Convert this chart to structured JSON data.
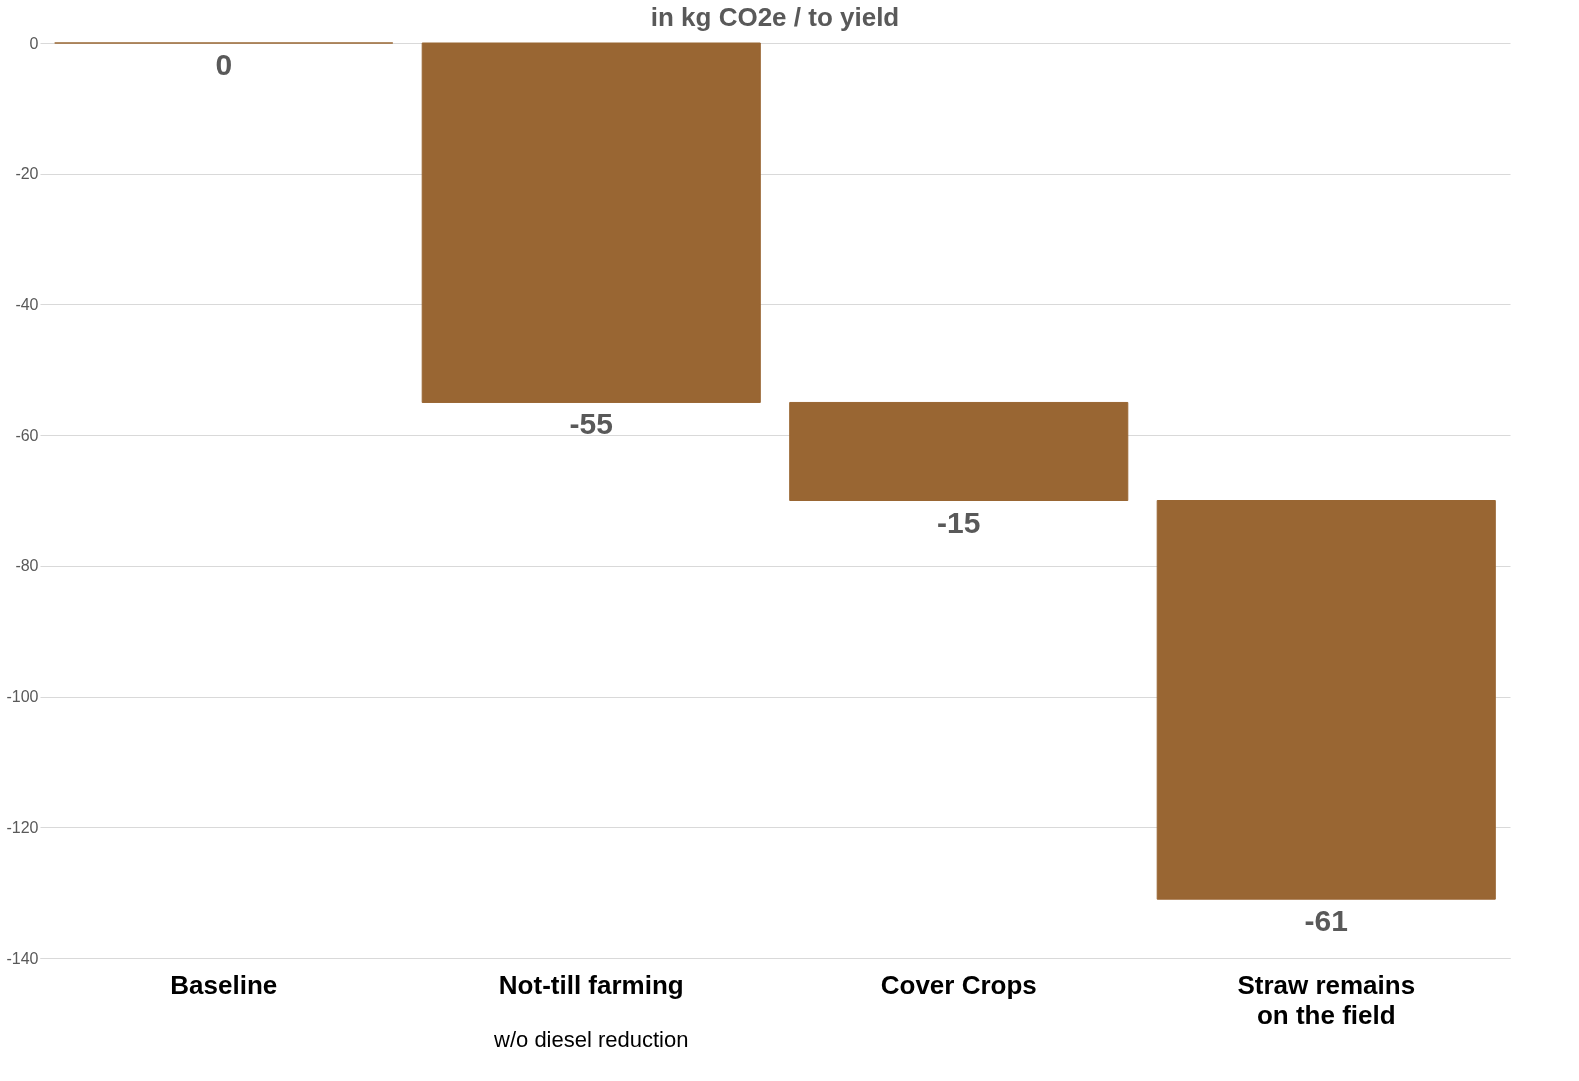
{
  "chart_data": {
    "type": "bar",
    "title": "in kg CO2e / to yield",
    "categories": [
      "Baseline",
      "Not-till farming",
      "Cover Crops",
      "Straw remains\non the field"
    ],
    "values": [
      0,
      -55,
      -15,
      -61
    ],
    "base": [
      0,
      0,
      -55,
      -70
    ],
    "color": "#996633",
    "ylim": [
      -140,
      0
    ],
    "yticks": [
      -140,
      -120,
      -100,
      -80,
      -60,
      -40,
      -20,
      0
    ],
    "grid": "y",
    "data_labels": true,
    "annotations": [
      "w/o diesel reduction"
    ]
  }
}
